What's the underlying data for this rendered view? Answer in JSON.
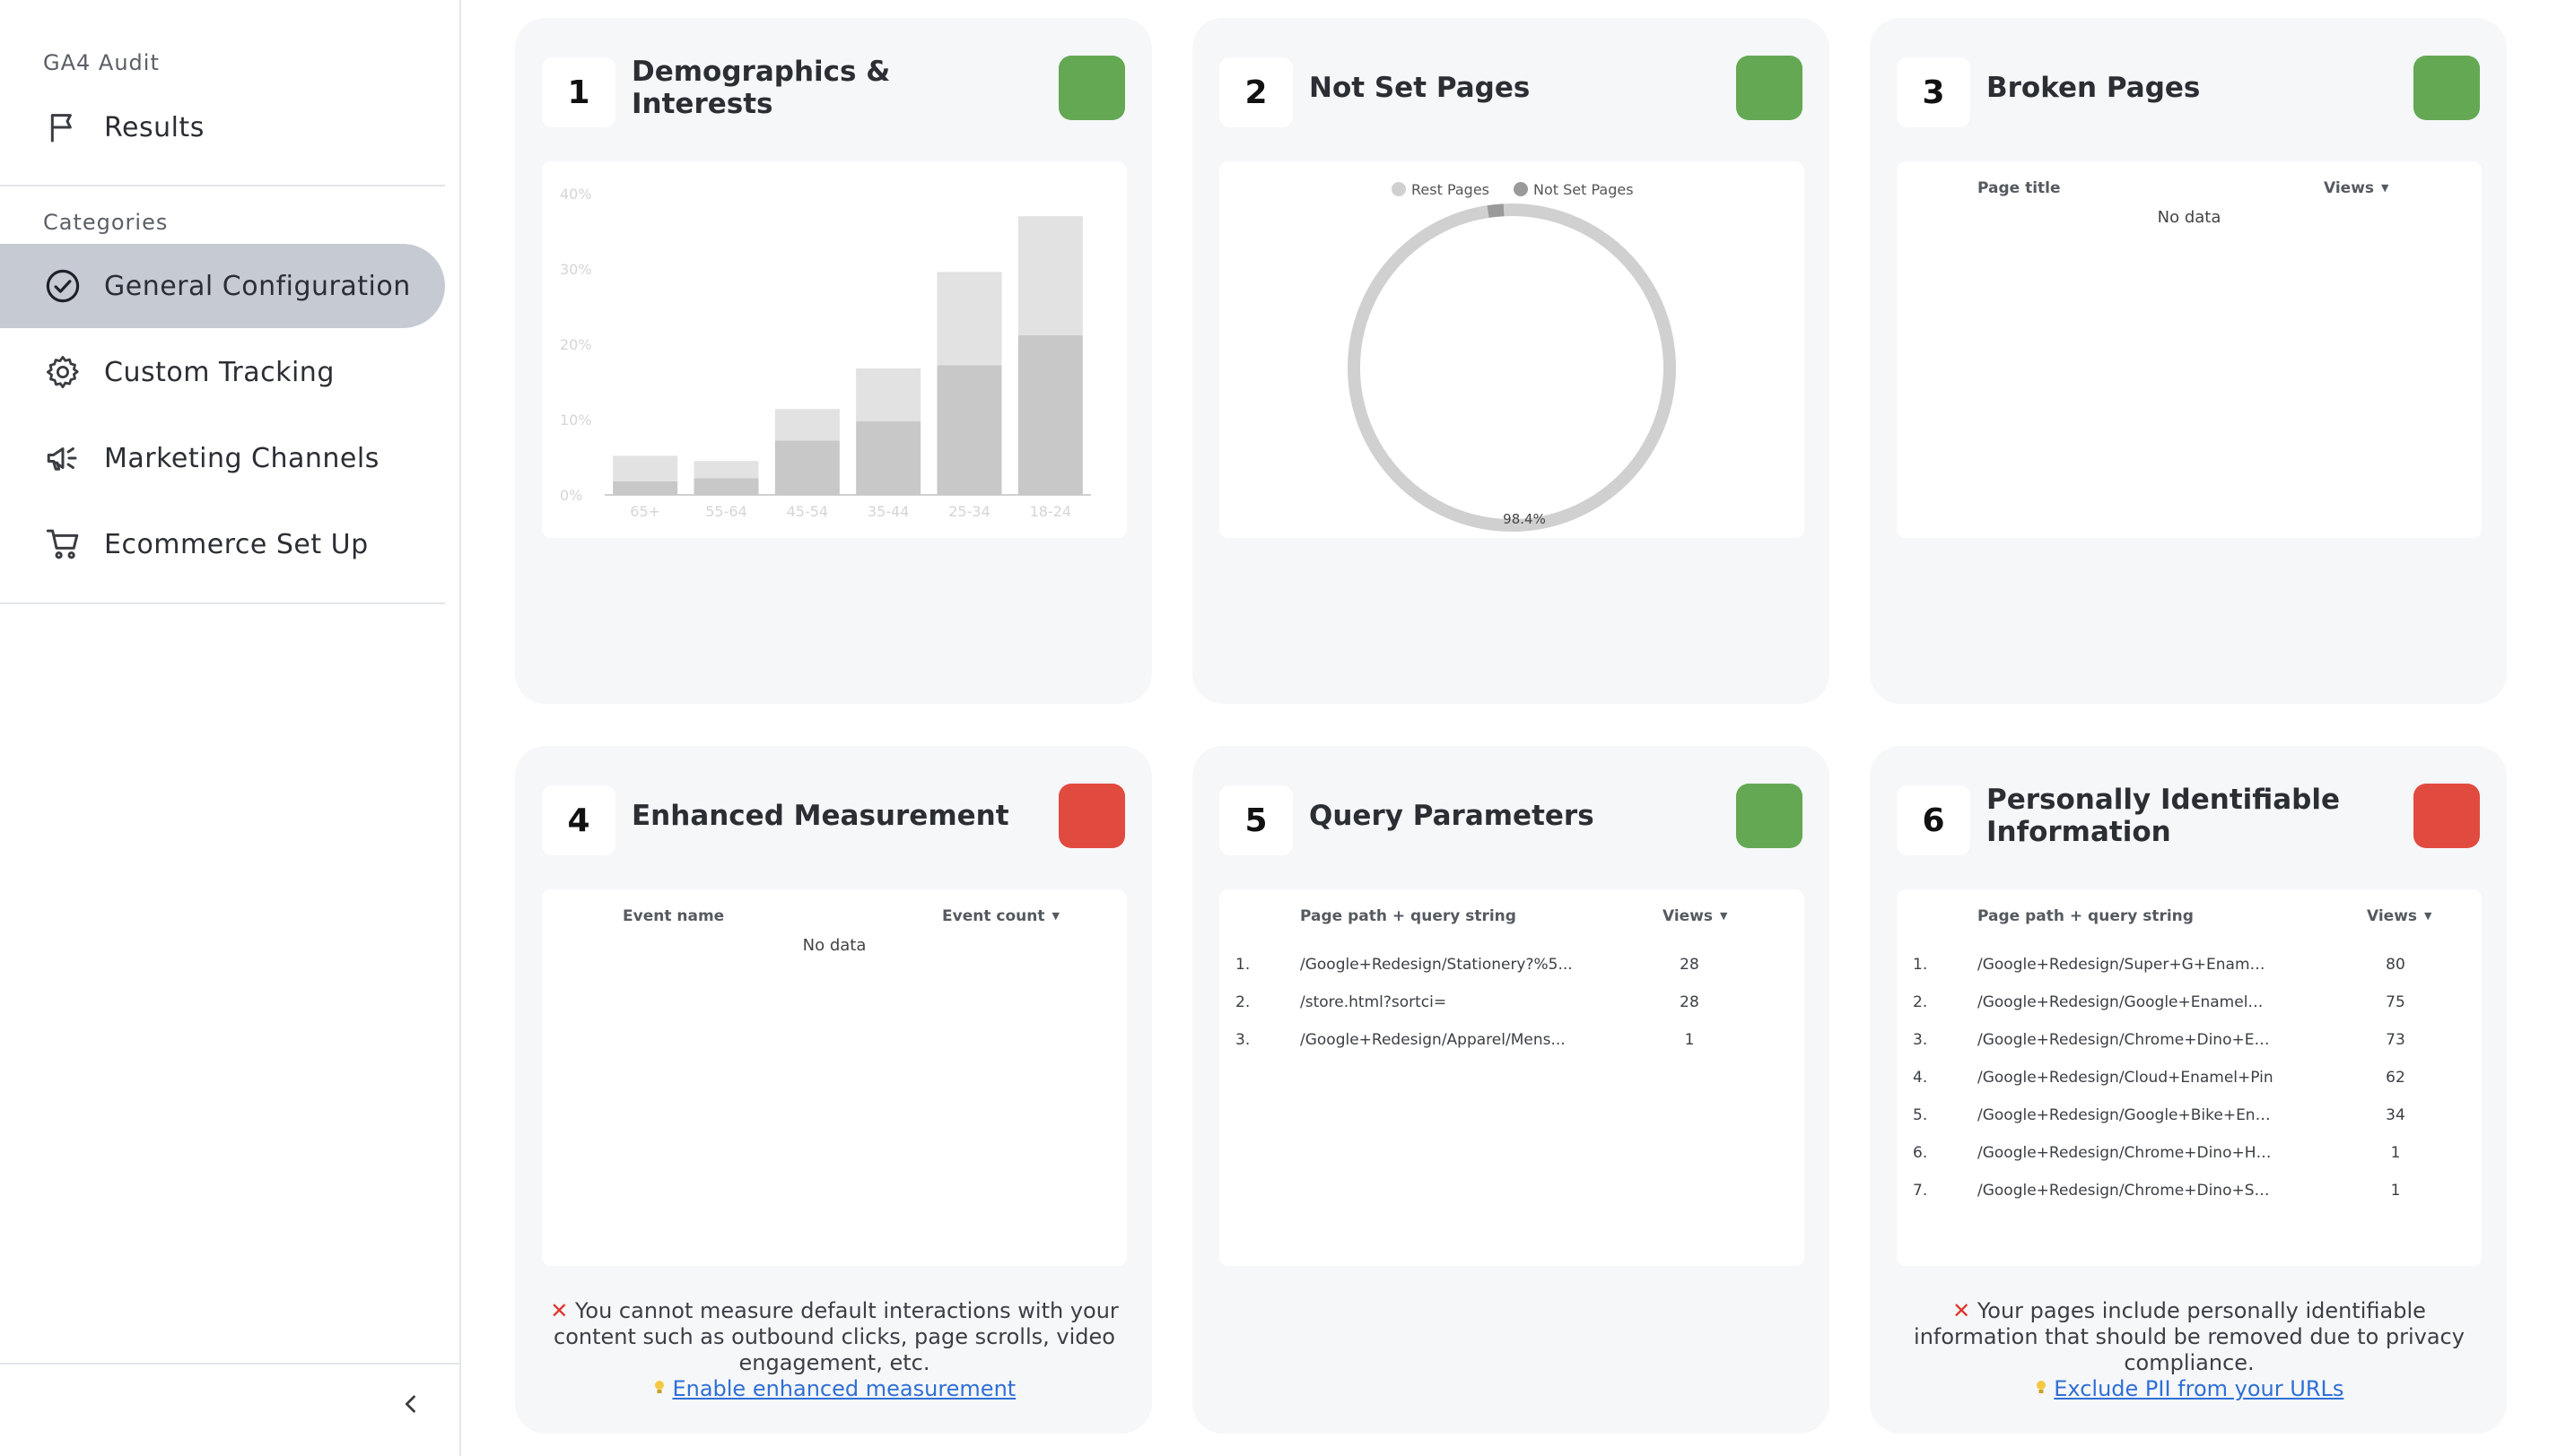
{
  "sidebar": {
    "app_section": "GA4 Audit",
    "results_label": "Results",
    "categories_label": "Categories",
    "items": [
      {
        "label": "General Configuration"
      },
      {
        "label": "Custom Tracking"
      },
      {
        "label": "Marketing Channels"
      },
      {
        "label": "Ecommerce Set Up"
      }
    ]
  },
  "cards": [
    {
      "num": "1",
      "title": "Demographics & Interests",
      "status": "green"
    },
    {
      "num": "2",
      "title": "Not Set Pages",
      "status": "green"
    },
    {
      "num": "3",
      "title": "Broken Pages",
      "status": "green"
    },
    {
      "num": "4",
      "title": "Enhanced Measurement",
      "status": "red"
    },
    {
      "num": "5",
      "title": "Query Parameters",
      "status": "green"
    },
    {
      "num": "6",
      "title": "Personally Identifiable Information",
      "status": "red"
    }
  ],
  "colors": {
    "green": "#64a854",
    "red": "#e14b3f",
    "bar_dark": "#c8c8c8",
    "bar_light": "#e2e2e2",
    "donut_rest": "#d0d0d0",
    "donut_notset": "#9a9a9a"
  },
  "chart_data": [
    {
      "type": "bar",
      "stacked": true,
      "categories": [
        "65+",
        "55-64",
        "45-54",
        "35-44",
        "25-34",
        "18-24"
      ],
      "series": [
        {
          "values": [
            1.8,
            2.2,
            7.2,
            9.8,
            17.2,
            21.2
          ]
        },
        {
          "values": [
            3.4,
            2.3,
            4.2,
            7.0,
            12.4,
            15.8
          ]
        }
      ],
      "yticks": [
        "0%",
        "10%",
        "20%",
        "30%",
        "40%"
      ],
      "ylim": [
        0,
        40
      ]
    },
    {
      "type": "pie",
      "donut": true,
      "legend": [
        "Rest Pages",
        "Not Set Pages"
      ],
      "values": [
        98.4,
        1.6
      ],
      "label": "98.4%"
    }
  ],
  "broken_pages": {
    "headers": {
      "title": "Page title",
      "views": "Views"
    },
    "empty": "No data"
  },
  "enhanced_measurement": {
    "headers": {
      "event": "Event name",
      "count": "Event count"
    },
    "empty": "No data",
    "note": "You cannot measure default interactions with your content such as outbound clicks, page scrolls, video engagement, etc.",
    "link": "Enable enhanced measurement"
  },
  "query_parameters": {
    "headers": {
      "path": "Page path + query string",
      "views": "Views"
    },
    "rows": [
      {
        "idx": "1.",
        "path": "/Google+Redesign/Stationery?%5...",
        "views": "28"
      },
      {
        "idx": "2.",
        "path": "/store.html?sortci=",
        "views": "28"
      },
      {
        "idx": "3.",
        "path": "/Google+Redesign/Apparel/Mens...",
        "views": "1"
      }
    ]
  },
  "pii": {
    "headers": {
      "path": "Page path + query string",
      "views": "Views"
    },
    "rows": [
      {
        "idx": "1.",
        "path": "/Google+Redesign/Super+G+Enamel+Pin",
        "views": "80"
      },
      {
        "idx": "2.",
        "path": "/Google+Redesign/Google+Enamel+Pin",
        "views": "75"
      },
      {
        "idx": "3.",
        "path": "/Google+Redesign/Chrome+Dino+Enam...",
        "views": "73"
      },
      {
        "idx": "4.",
        "path": "/Google+Redesign/Cloud+Enamel+Pin",
        "views": "62"
      },
      {
        "idx": "5.",
        "path": "/Google+Redesign/Google+Bike+Enamel...",
        "views": "34"
      },
      {
        "idx": "6.",
        "path": "/Google+Redesign/Chrome+Dino+Hit+th...",
        "views": "1"
      },
      {
        "idx": "7.",
        "path": "/Google+Redesign/Chrome+Dino+Skiing...",
        "views": "1"
      }
    ],
    "note": "Your pages include personally identifiable information that should be removed due to privacy compliance.",
    "link": "Exclude PII from your URLs"
  }
}
